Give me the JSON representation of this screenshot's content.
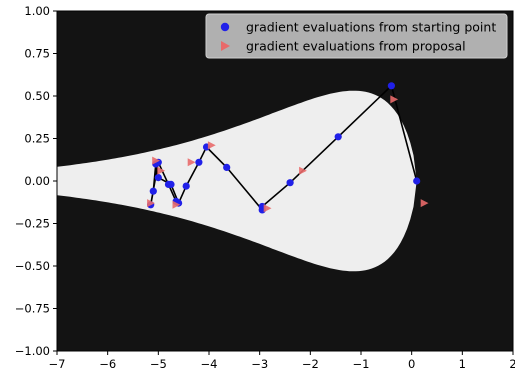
{
  "chart_data": {
    "type": "scatter",
    "title": "",
    "xlabel": "",
    "ylabel": "",
    "xlim": [
      -7,
      2
    ],
    "ylim": [
      -1.0,
      1.0
    ],
    "x_ticks": [
      -7,
      -6,
      -5,
      -4,
      -3,
      -2,
      -1,
      0,
      1,
      2
    ],
    "x_tick_labels": [
      "−7",
      "−6",
      "−5",
      "−4",
      "−3",
      "−2",
      "−1",
      "0",
      "1",
      "2"
    ],
    "y_ticks": [
      1.0,
      0.75,
      0.5,
      0.25,
      0.0,
      -0.25,
      -0.5,
      -0.75,
      -1.0
    ],
    "y_tick_labels": [
      "1.00",
      "0.75",
      "0.50",
      "0.25",
      "0.00",
      "−0.25",
      "−0.50",
      "−0.75",
      "−1.00"
    ],
    "grid": false,
    "legend_position": "top-right",
    "background": {
      "type": "filled-contour",
      "colormap": "greys",
      "description": "funnel density"
    },
    "series": [
      {
        "name": "gradient evaluations from starting point",
        "marker": "circle",
        "color": "#2020e8",
        "connected": true,
        "line_color": "#000000",
        "x": [
          0.1,
          -0.4,
          -1.45,
          -2.4,
          -2.95,
          -2.95,
          -3.65,
          -4.05,
          -4.2,
          -4.45,
          -4.6,
          -4.75,
          -5.0,
          -5.05,
          -5.1,
          -5.15,
          -5.0,
          -4.8,
          -4.65
        ],
        "y": [
          0.0,
          0.56,
          0.26,
          -0.01,
          -0.15,
          -0.17,
          0.08,
          0.2,
          0.11,
          -0.03,
          -0.13,
          -0.02,
          0.02,
          0.1,
          -0.06,
          -0.14,
          0.11,
          -0.02,
          -0.12
        ]
      },
      {
        "name": "gradient evaluations from proposal",
        "marker": "triangle-right",
        "color": "#e86a6a",
        "connected": false,
        "x": [
          0.25,
          -0.35,
          -2.15,
          -2.85,
          -3.95,
          -4.65,
          -5.05,
          -5.15,
          -4.95,
          -4.35
        ],
        "y": [
          -0.13,
          0.48,
          0.06,
          -0.16,
          0.21,
          -0.14,
          0.12,
          -0.13,
          0.06,
          0.11
        ]
      }
    ]
  }
}
